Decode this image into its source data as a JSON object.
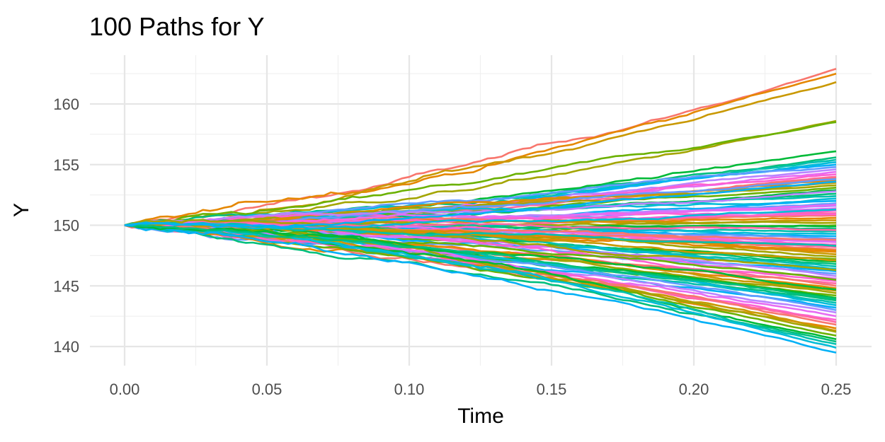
{
  "chart_data": {
    "type": "line",
    "title": "100 Paths for Y",
    "xlabel": "Time",
    "ylabel": "Y",
    "xlim": [
      0.0,
      0.25
    ],
    "ylim": [
      139.2,
      163.4
    ],
    "x_ticks": [
      0.0,
      0.05,
      0.1,
      0.15,
      0.2,
      0.25
    ],
    "x_tick_labels": [
      "0.00",
      "0.05",
      "0.10",
      "0.15",
      "0.20",
      "0.25"
    ],
    "y_ticks": [
      140,
      145,
      150,
      155,
      160
    ],
    "y_tick_labels": [
      "140",
      "145",
      "150",
      "155",
      "160"
    ],
    "grid": true,
    "legend": "none",
    "n_paths": 100,
    "start_value": 150,
    "x_step": 0.0025,
    "end_values": [
      162.9,
      162.5,
      161.8,
      158.6,
      158.5,
      156.1,
      155.6,
      155.4,
      155.2,
      155.0,
      154.8,
      154.6,
      154.4,
      154.2,
      154.0,
      153.9,
      153.7,
      153.5,
      153.3,
      153.1,
      152.9,
      152.6,
      152.4,
      152.2,
      152.0,
      151.8,
      151.6,
      151.4,
      151.2,
      151.0,
      150.8,
      150.6,
      150.4,
      150.2,
      150.0,
      149.9,
      149.7,
      149.5,
      149.3,
      149.1,
      148.9,
      148.7,
      148.6,
      148.4,
      148.2,
      148.0,
      147.8,
      147.6,
      147.4,
      147.2,
      147.0,
      146.8,
      146.6,
      146.4,
      146.2,
      146.0,
      145.8,
      145.6,
      145.4,
      145.2,
      145.0,
      144.8,
      144.6,
      144.4,
      144.2,
      144.0,
      143.8,
      143.6,
      143.4,
      143.2,
      143.0,
      142.8,
      142.5,
      142.2,
      142.0,
      141.8,
      141.5,
      141.3,
      141.2,
      140.9,
      140.6,
      140.4,
      140.2,
      139.9,
      139.5,
      153.8,
      152.8,
      151.7,
      150.9,
      149.6,
      148.8,
      147.9,
      147.1,
      146.3,
      145.5,
      144.7,
      143.9,
      148.3,
      151.3,
      153.6
    ],
    "palette": [
      "#F8766D",
      "#E58700",
      "#C99800",
      "#A3A500",
      "#6BB100",
      "#00BA38",
      "#00BF7D",
      "#00C0AF",
      "#00BCD8",
      "#00B0F6",
      "#619CFF",
      "#B983FF",
      "#E76BF3",
      "#FD61D1",
      "#FF67A4"
    ]
  }
}
